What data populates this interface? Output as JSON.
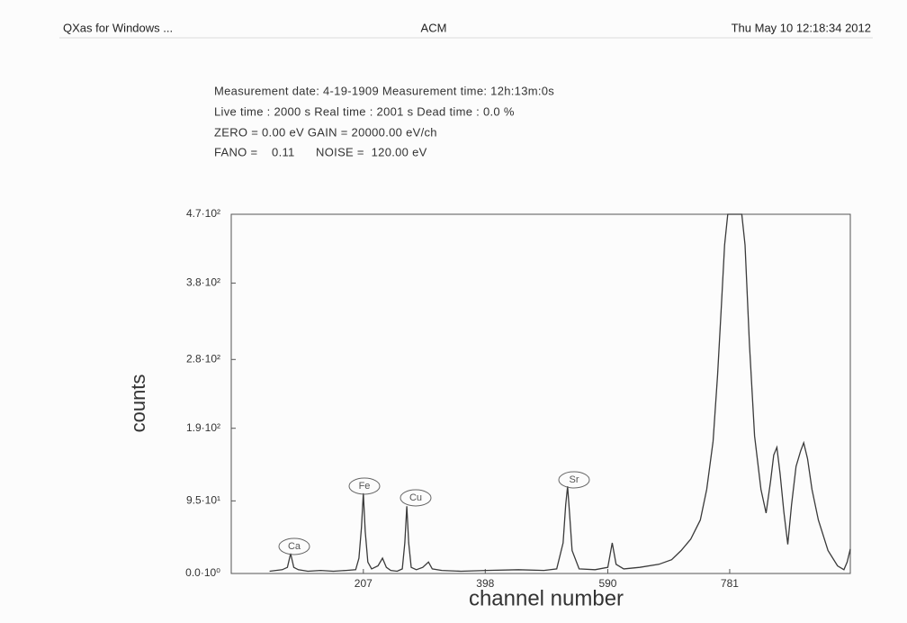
{
  "header": {
    "left": "QXas for Windows ...",
    "center": "ACM",
    "right": "Thu May 10 12:18:34 2012"
  },
  "info": [
    "Measurement  date: 4-19-1909   Measurement  time: 12h:13m:0s",
    "Live time :  2000 s  Real time : 2001 s   Dead time :  0.0 %",
    "ZERO =    0.00 eV   GAIN = 20000.00 eV/ch",
    "FANO =    0.11      NOISE =  120.00 eV"
  ],
  "chart_data": {
    "type": "line",
    "x_label": "channel number",
    "y_label": "counts",
    "annotations": [
      "Ca",
      "Fe",
      "Cu",
      "Sr"
    ],
    "x": [
      60,
      70,
      80,
      88,
      93,
      98,
      105,
      120,
      140,
      160,
      180,
      195,
      200,
      204,
      207,
      210,
      214,
      220,
      230,
      237,
      243,
      250,
      260,
      268,
      272,
      275,
      278,
      282,
      290,
      300,
      309,
      315,
      330,
      360,
      400,
      450,
      490,
      510,
      520,
      524,
      527,
      530,
      534,
      545,
      570,
      590,
      597,
      603,
      615,
      640,
      670,
      690,
      705,
      720,
      735,
      745,
      755,
      762,
      768,
      773,
      778,
      780,
      800,
      805,
      812,
      820,
      830,
      838,
      845,
      850,
      855,
      860,
      866,
      872,
      878,
      885,
      892,
      897,
      903,
      910,
      920,
      935,
      950,
      960,
      965,
      970
    ],
    "series": [
      {
        "color": "#3a3a3a",
        "values": [
          3,
          4,
          5,
          8,
          26,
          8,
          5,
          3,
          4,
          3,
          4,
          5,
          20,
          60,
          105,
          55,
          15,
          6,
          10,
          20,
          8,
          4,
          3,
          6,
          40,
          88,
          40,
          8,
          5,
          8,
          15,
          6,
          4,
          3,
          4,
          5,
          4,
          6,
          40,
          90,
          114,
          80,
          30,
          6,
          5,
          8,
          40,
          12,
          6,
          8,
          12,
          18,
          30,
          45,
          70,
          110,
          173,
          260,
          350,
          430,
          470,
          470,
          470,
          430,
          300,
          180,
          110,
          79,
          120,
          155,
          165,
          130,
          80,
          38,
          90,
          140,
          160,
          171,
          150,
          110,
          70,
          30,
          10,
          5,
          15,
          32
        ]
      }
    ],
    "xlim": [
      0,
      970
    ],
    "ylim": [
      0,
      470
    ],
    "xticks": [
      207,
      398,
      590,
      781
    ],
    "yticks": [
      {
        "value": 0,
        "label": "0.0·10⁰"
      },
      {
        "value": 95,
        "label": "9.5·10¹"
      },
      {
        "value": 190,
        "label": "1.9·10²"
      },
      {
        "value": 280,
        "label": "2.8·10²"
      },
      {
        "value": 380,
        "label": "3.8·10²"
      },
      {
        "value": 470,
        "label": "4.7·10²"
      }
    ]
  }
}
